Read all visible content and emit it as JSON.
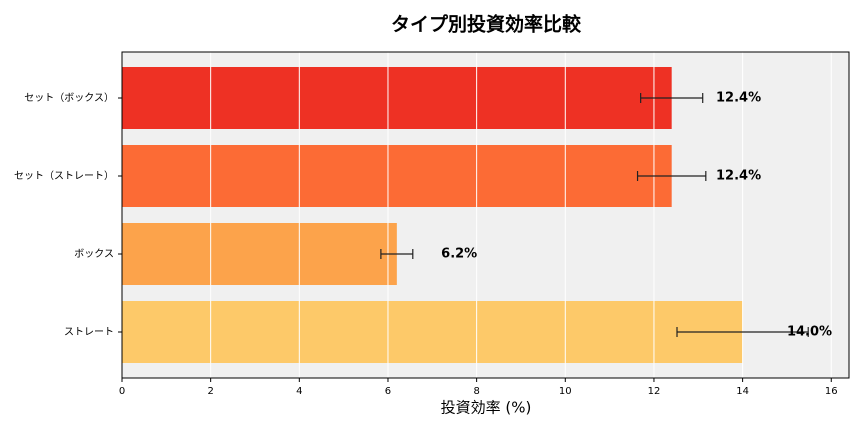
{
  "chart_data": {
    "type": "barh",
    "title": "タイプ別投資効率比較",
    "x_label": "投資効率 (%)",
    "categories": [
      "セット（ボックス）",
      "セット（ストレート）",
      "ボックス",
      "ストレート"
    ],
    "values": [
      12.4,
      12.4,
      6.2,
      14.0
    ],
    "errors": [
      0.7,
      0.77,
      0.36,
      1.48
    ],
    "value_labels": [
      "12.4%",
      "12.4%",
      "6.2%",
      "14.0%"
    ],
    "colors": [
      "#ee3124",
      "#fc6b35",
      "#fca34b",
      "#fdc969"
    ],
    "xlim": [
      0,
      16.4
    ],
    "xticks": [
      0,
      2,
      4,
      6,
      8,
      10,
      12,
      14,
      16
    ],
    "grid": true
  }
}
